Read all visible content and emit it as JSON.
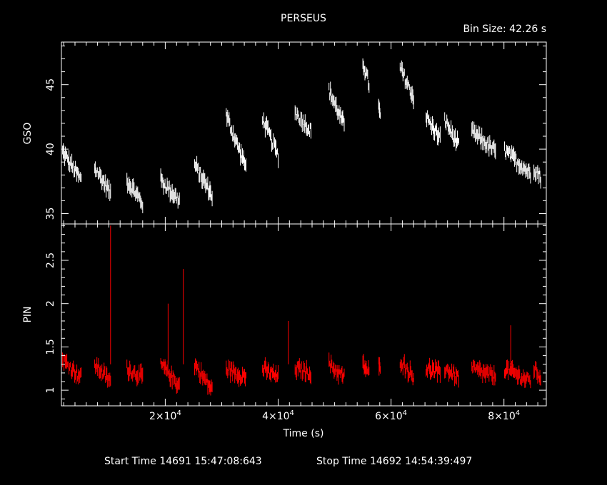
{
  "title": "PERSEUS",
  "bin_size": "Bin Size: 42.26 s",
  "x_axis": {
    "label": "Time (s)",
    "ticks": [
      {
        "value": 20000,
        "mant": "2",
        "exp": "4"
      },
      {
        "value": 40000,
        "mant": "4",
        "exp": "4"
      },
      {
        "value": 60000,
        "mant": "6",
        "exp": "4"
      },
      {
        "value": 80000,
        "mant": "8",
        "exp": "4"
      }
    ]
  },
  "footer": {
    "start": "Start Time 14691 15:47:08:643",
    "stop": "Stop Time 14692 14:54:39:497"
  },
  "colors": {
    "gso": "#ffffff",
    "pin": "#ff0000",
    "axes": "#ffffff",
    "background": "#000000"
  },
  "chart_data": [
    {
      "type": "scatter",
      "panel": "top",
      "ylabel": "GSO",
      "xlim": [
        1600,
        87500
      ],
      "ylim": [
        34.2,
        48.3
      ],
      "yticks": [
        "35",
        "40",
        "45"
      ],
      "grid": false,
      "error_bars": true,
      "segments": [
        {
          "x": [
            1800,
            5100
          ],
          "y": [
            39.8,
            37.6
          ]
        },
        {
          "x": [
            7500,
            10300
          ],
          "y": [
            38.6,
            36.6
          ]
        },
        {
          "x": [
            13200,
            16000
          ],
          "y": [
            37.6,
            35.8
          ]
        },
        {
          "x": [
            19200,
            22500
          ],
          "y": [
            37.6,
            36.0
          ]
        },
        {
          "x": [
            25200,
            28300
          ],
          "y": [
            38.8,
            36.4
          ]
        },
        {
          "x": [
            30800,
            34300
          ],
          "y": [
            42.6,
            38.6
          ]
        },
        {
          "x": [
            37200,
            40000
          ],
          "y": [
            42.4,
            39.5
          ]
        },
        {
          "x": [
            43000,
            45800
          ],
          "y": [
            42.9,
            41.4
          ]
        },
        {
          "x": [
            49000,
            51700
          ],
          "y": [
            44.6,
            41.8
          ]
        },
        {
          "x": [
            55000,
            56100
          ],
          "y": [
            46.8,
            45.0
          ]
        },
        {
          "x": [
            57800,
            58100
          ],
          "y": [
            43.3,
            42.4
          ]
        },
        {
          "x": [
            61600,
            64000
          ],
          "y": [
            46.3,
            44.0
          ]
        },
        {
          "x": [
            66200,
            68700
          ],
          "y": [
            42.5,
            40.8
          ]
        },
        {
          "x": [
            69500,
            72000
          ],
          "y": [
            42.3,
            40.2
          ]
        },
        {
          "x": [
            74300,
            78500
          ],
          "y": [
            41.4,
            39.8
          ]
        },
        {
          "x": [
            80100,
            84700
          ],
          "y": [
            39.9,
            38.1
          ]
        },
        {
          "x": [
            85300,
            86500
          ],
          "y": [
            38.6,
            37.8
          ]
        }
      ]
    },
    {
      "type": "scatter",
      "panel": "bottom",
      "ylabel": "PIN",
      "xlim": [
        1600,
        87500
      ],
      "ylim": [
        0.82,
        2.92
      ],
      "yticks": [
        "1",
        "1.5",
        "2",
        "2.5"
      ],
      "grid": false,
      "error_bars": true,
      "segments": [
        {
          "x": [
            1800,
            5100
          ],
          "y": [
            1.35,
            1.15
          ]
        },
        {
          "x": [
            7500,
            10300
          ],
          "y": [
            1.3,
            1.1
          ]
        },
        {
          "x": [
            13200,
            16000
          ],
          "y": [
            1.25,
            1.15
          ]
        },
        {
          "x": [
            19200,
            22500
          ],
          "y": [
            1.3,
            1.05
          ]
        },
        {
          "x": [
            25200,
            28300
          ],
          "y": [
            1.3,
            1.0
          ]
        },
        {
          "x": [
            30800,
            34300
          ],
          "y": [
            1.25,
            1.15
          ]
        },
        {
          "x": [
            37200,
            40000
          ],
          "y": [
            1.25,
            1.15
          ]
        },
        {
          "x": [
            43000,
            45800
          ],
          "y": [
            1.25,
            1.2
          ]
        },
        {
          "x": [
            49000,
            51700
          ],
          "y": [
            1.3,
            1.15
          ]
        },
        {
          "x": [
            55000,
            56100
          ],
          "y": [
            1.3,
            1.2
          ]
        },
        {
          "x": [
            57800,
            58100
          ],
          "y": [
            1.3,
            1.2
          ]
        },
        {
          "x": [
            61600,
            64000
          ],
          "y": [
            1.35,
            1.15
          ]
        },
        {
          "x": [
            66200,
            68700
          ],
          "y": [
            1.25,
            1.2
          ]
        },
        {
          "x": [
            69500,
            72000
          ],
          "y": [
            1.25,
            1.15
          ]
        },
        {
          "x": [
            74300,
            78500
          ],
          "y": [
            1.25,
            1.15
          ]
        },
        {
          "x": [
            80100,
            84700
          ],
          "y": [
            1.25,
            1.1
          ]
        },
        {
          "x": [
            85300,
            86500
          ],
          "y": [
            1.25,
            1.15
          ]
        }
      ],
      "peaks": [
        {
          "x": 10300,
          "y": 2.9
        },
        {
          "x": 20500,
          "y": 2.0
        },
        {
          "x": 23200,
          "y": 2.4
        },
        {
          "x": 41800,
          "y": 1.8
        },
        {
          "x": 81200,
          "y": 1.75
        }
      ]
    }
  ]
}
